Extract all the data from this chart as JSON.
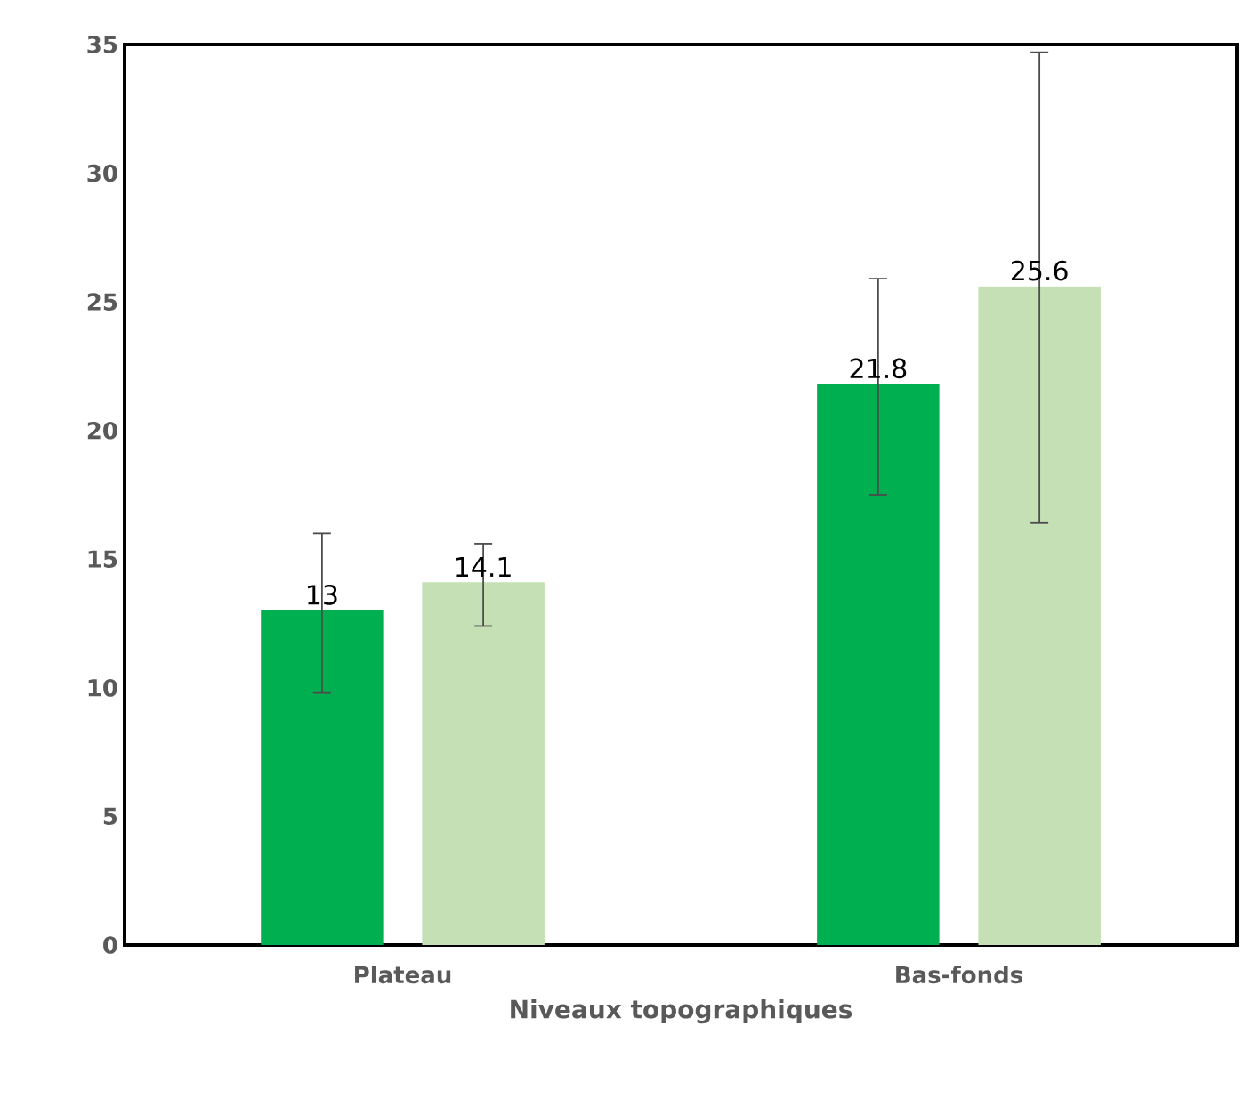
{
  "chart_data": {
    "type": "bar",
    "xlabel": "Niveaux topographiques",
    "categories": [
      "Plateau",
      "Bas-fonds"
    ],
    "series": [
      {
        "color": "#00b050",
        "values": [
          13,
          21.8
        ],
        "errors": [
          [
            9.8,
            16
          ],
          [
            17.5,
            25.9
          ]
        ]
      },
      {
        "color": "#c5e0b4",
        "values": [
          14.1,
          25.6
        ],
        "errors": [
          [
            12.4,
            15.6
          ],
          [
            16.4,
            34.7
          ]
        ]
      }
    ],
    "ylim": [
      0,
      35
    ],
    "yticks": [
      0,
      5,
      10,
      15,
      20,
      25,
      30,
      35
    ],
    "data_labels": true,
    "grid": false
  }
}
